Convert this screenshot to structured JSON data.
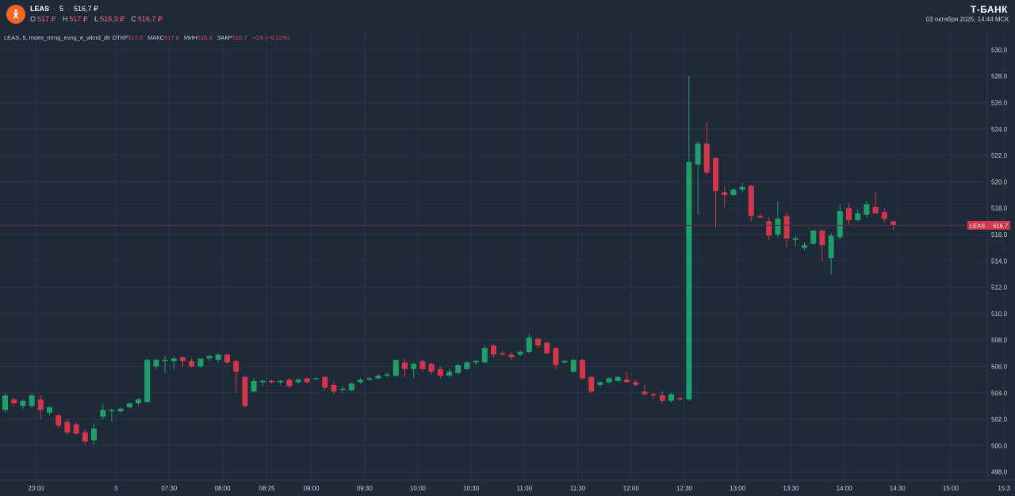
{
  "header": {
    "symbol": "LEAS",
    "interval": "5",
    "price": "516,7 ₽",
    "ohlc": {
      "o_label": "O",
      "o_value": "517 ₽",
      "h_label": "H",
      "h_value": "517 ₽",
      "l_label": "L",
      "l_value": "516,3 ₽",
      "c_label": "C",
      "c_value": "516,7 ₽"
    },
    "brand": "Т-БАНК",
    "datetime": "03 октября 2025, 14:44 МСК"
  },
  "legend": {
    "title": "LEAS, 5, moex_mrng_evng_e_wknd_dlr",
    "open_label": "ОТКР",
    "open_value": "517.0",
    "high_label": "МАКС",
    "high_value": "517.0",
    "low_label": "МИН",
    "low_value": "516.3",
    "close_label": "ЗАКР",
    "close_value": "516.7",
    "change": "−0.6 (−0.12%)"
  },
  "colors": {
    "background": "#1e2a38",
    "up": "#1f9e6a",
    "down": "#d1364a",
    "grid": "#26344a",
    "axis_text": "#c5ccd6",
    "brand_logo": "#f26522"
  },
  "chart_data": {
    "type": "candlestick",
    "y_axis": {
      "range": [
        497.5,
        531
      ],
      "ticks": [
        498,
        500,
        502,
        504,
        506,
        508,
        510,
        512,
        514,
        516,
        518,
        520,
        522,
        524,
        526,
        528,
        530
      ],
      "tick_labels": [
        "498.0",
        "500.0",
        "502.0",
        "504.0",
        "506.0",
        "508.0",
        "510.0",
        "512.0",
        "514.0",
        "516.0",
        "518.0",
        "520.0",
        "522.0",
        "524.0",
        "526.0",
        "528.0",
        "530.0"
      ]
    },
    "x_axis": {
      "tick_labels": [
        "23:00",
        "3",
        "07:30",
        "08:00",
        "08:25",
        "09:00",
        "09:30",
        "10:00",
        "10:30",
        "11:00",
        "11:30",
        "12:00",
        "12:30",
        "13:00",
        "13:30",
        "14:00",
        "14:30",
        "15:00",
        "15:3"
      ],
      "tick_bar_index": [
        2,
        11,
        17,
        23,
        28,
        33,
        39,
        45,
        51,
        57,
        63,
        69,
        75,
        81,
        87,
        93,
        99,
        105,
        111
      ]
    },
    "last_price": {
      "label": "LEAS",
      "value": "516.7",
      "numeric": 516.7
    },
    "candles": [
      {
        "o": 502.7,
        "h": 504.0,
        "l": 502.5,
        "c": 503.8
      },
      {
        "o": 503.5,
        "h": 503.7,
        "l": 503.0,
        "c": 503.2
      },
      {
        "o": 503.0,
        "h": 503.5,
        "l": 502.8,
        "c": 503.4
      },
      {
        "o": 503.0,
        "h": 504.0,
        "l": 502.8,
        "c": 503.8
      },
      {
        "o": 503.5,
        "h": 503.8,
        "l": 502.0,
        "c": 502.7
      },
      {
        "o": 502.5,
        "h": 503.0,
        "l": 502.3,
        "c": 502.9
      },
      {
        "o": 502.3,
        "h": 502.5,
        "l": 501.3,
        "c": 501.5
      },
      {
        "o": 501.8,
        "h": 502.0,
        "l": 500.8,
        "c": 501.0
      },
      {
        "o": 501.6,
        "h": 501.8,
        "l": 500.8,
        "c": 500.9
      },
      {
        "o": 501.0,
        "h": 501.2,
        "l": 500.0,
        "c": 500.3
      },
      {
        "o": 500.4,
        "h": 501.7,
        "l": 500.1,
        "c": 501.3
      },
      {
        "o": 502.2,
        "h": 503.1,
        "l": 502.0,
        "c": 502.7
      },
      {
        "o": 502.6,
        "h": 502.8,
        "l": 501.8,
        "c": 502.7
      },
      {
        "o": 502.6,
        "h": 502.9,
        "l": 502.5,
        "c": 502.8
      },
      {
        "o": 502.9,
        "h": 503.2,
        "l": 502.8,
        "c": 503.2
      },
      {
        "o": 503.2,
        "h": 503.6,
        "l": 503.0,
        "c": 503.5
      },
      {
        "o": 503.3,
        "h": 506.6,
        "l": 503.3,
        "c": 506.5
      },
      {
        "o": 506.0,
        "h": 506.6,
        "l": 505.8,
        "c": 506.5
      },
      {
        "o": 506.4,
        "h": 506.8,
        "l": 505.5,
        "c": 506.5
      },
      {
        "o": 506.4,
        "h": 506.8,
        "l": 505.8,
        "c": 506.6
      },
      {
        "o": 506.7,
        "h": 506.8,
        "l": 506.0,
        "c": 506.4
      },
      {
        "o": 506.4,
        "h": 506.6,
        "l": 505.9,
        "c": 506.0
      },
      {
        "o": 506.0,
        "h": 506.6,
        "l": 505.9,
        "c": 506.6
      },
      {
        "o": 506.6,
        "h": 506.9,
        "l": 506.4,
        "c": 506.8
      },
      {
        "o": 506.5,
        "h": 507.0,
        "l": 506.3,
        "c": 506.9
      },
      {
        "o": 506.9,
        "h": 507.0,
        "l": 506.2,
        "c": 506.3
      },
      {
        "o": 506.4,
        "h": 506.5,
        "l": 504.0,
        "c": 505.6
      },
      {
        "o": 505.2,
        "h": 505.3,
        "l": 502.9,
        "c": 503.0
      },
      {
        "o": 504.1,
        "h": 505.1,
        "l": 504.0,
        "c": 504.9
      },
      {
        "o": 504.8,
        "h": 505.0,
        "l": 504.5,
        "c": 504.9
      },
      {
        "o": 504.9,
        "h": 505.0,
        "l": 504.7,
        "c": 504.8
      },
      {
        "o": 504.8,
        "h": 505.0,
        "l": 504.6,
        "c": 504.9
      },
      {
        "o": 505.0,
        "h": 505.1,
        "l": 504.4,
        "c": 504.5
      },
      {
        "o": 504.8,
        "h": 505.1,
        "l": 504.7,
        "c": 505.0
      },
      {
        "o": 505.1,
        "h": 505.2,
        "l": 504.7,
        "c": 504.8
      },
      {
        "o": 505.1,
        "h": 505.2,
        "l": 505.0,
        "c": 505.1
      },
      {
        "o": 505.2,
        "h": 505.3,
        "l": 504.2,
        "c": 504.4
      },
      {
        "o": 504.6,
        "h": 504.8,
        "l": 503.9,
        "c": 504.1
      },
      {
        "o": 504.3,
        "h": 504.5,
        "l": 504.0,
        "c": 504.3
      },
      {
        "o": 504.2,
        "h": 504.8,
        "l": 504.1,
        "c": 504.7
      },
      {
        "o": 504.8,
        "h": 505.1,
        "l": 504.7,
        "c": 505.0
      },
      {
        "o": 505.0,
        "h": 505.2,
        "l": 504.9,
        "c": 505.1
      },
      {
        "o": 505.1,
        "h": 505.4,
        "l": 505.0,
        "c": 505.3
      },
      {
        "o": 505.3,
        "h": 505.5,
        "l": 505.2,
        "c": 505.4
      },
      {
        "o": 505.3,
        "h": 506.5,
        "l": 505.2,
        "c": 506.5
      },
      {
        "o": 506.3,
        "h": 506.6,
        "l": 505.2,
        "c": 505.8
      },
      {
        "o": 505.8,
        "h": 506.3,
        "l": 505.1,
        "c": 506.2
      },
      {
        "o": 506.4,
        "h": 506.5,
        "l": 505.6,
        "c": 505.8
      },
      {
        "o": 506.2,
        "h": 506.3,
        "l": 505.4,
        "c": 505.6
      },
      {
        "o": 505.8,
        "h": 506.0,
        "l": 505.1,
        "c": 505.3
      },
      {
        "o": 505.3,
        "h": 505.8,
        "l": 505.2,
        "c": 505.6
      },
      {
        "o": 505.5,
        "h": 506.2,
        "l": 505.4,
        "c": 506.1
      },
      {
        "o": 505.8,
        "h": 506.4,
        "l": 505.7,
        "c": 506.3
      },
      {
        "o": 506.3,
        "h": 506.5,
        "l": 506.1,
        "c": 506.4
      },
      {
        "o": 506.3,
        "h": 507.6,
        "l": 506.2,
        "c": 507.4
      },
      {
        "o": 507.6,
        "h": 507.7,
        "l": 506.7,
        "c": 506.9
      },
      {
        "o": 507.0,
        "h": 507.2,
        "l": 506.8,
        "c": 506.9
      },
      {
        "o": 506.9,
        "h": 507.1,
        "l": 506.5,
        "c": 506.7
      },
      {
        "o": 506.9,
        "h": 507.2,
        "l": 506.8,
        "c": 507.1
      },
      {
        "o": 507.1,
        "h": 508.5,
        "l": 507.0,
        "c": 508.2
      },
      {
        "o": 508.1,
        "h": 508.2,
        "l": 507.4,
        "c": 507.6
      },
      {
        "o": 507.8,
        "h": 507.9,
        "l": 506.9,
        "c": 507.0
      },
      {
        "o": 507.4,
        "h": 507.5,
        "l": 505.8,
        "c": 506.1
      },
      {
        "o": 506.3,
        "h": 506.5,
        "l": 506.2,
        "c": 506.4
      },
      {
        "o": 505.6,
        "h": 506.6,
        "l": 505.5,
        "c": 506.5
      },
      {
        "o": 506.5,
        "h": 506.6,
        "l": 505.0,
        "c": 505.1
      },
      {
        "o": 505.2,
        "h": 505.3,
        "l": 504.0,
        "c": 504.1
      },
      {
        "o": 504.6,
        "h": 504.9,
        "l": 504.4,
        "c": 504.8
      },
      {
        "o": 504.8,
        "h": 505.2,
        "l": 504.7,
        "c": 505.1
      },
      {
        "o": 504.9,
        "h": 505.3,
        "l": 504.8,
        "c": 505.2
      },
      {
        "o": 505.0,
        "h": 505.6,
        "l": 504.8,
        "c": 504.8
      },
      {
        "o": 504.8,
        "h": 505.0,
        "l": 504.5,
        "c": 504.6
      },
      {
        "o": 504.1,
        "h": 504.6,
        "l": 503.8,
        "c": 503.9
      },
      {
        "o": 503.9,
        "h": 504.0,
        "l": 503.5,
        "c": 503.8
      },
      {
        "o": 503.8,
        "h": 504.1,
        "l": 503.2,
        "c": 503.4
      },
      {
        "o": 503.4,
        "h": 504.0,
        "l": 503.3,
        "c": 503.9
      },
      {
        "o": 503.6,
        "h": 503.7,
        "l": 503.4,
        "c": 503.5
      },
      {
        "o": 503.5,
        "h": 528.0,
        "l": 503.4,
        "c": 521.5
      },
      {
        "o": 521.3,
        "h": 523.1,
        "l": 517.5,
        "c": 522.9
      },
      {
        "o": 522.9,
        "h": 524.5,
        "l": 520.5,
        "c": 520.7
      },
      {
        "o": 521.8,
        "h": 521.9,
        "l": 516.5,
        "c": 519.3
      },
      {
        "o": 519.2,
        "h": 519.6,
        "l": 518.1,
        "c": 519.0
      },
      {
        "o": 519.0,
        "h": 519.5,
        "l": 518.9,
        "c": 519.4
      },
      {
        "o": 519.4,
        "h": 519.9,
        "l": 519.2,
        "c": 519.6
      },
      {
        "o": 519.7,
        "h": 519.7,
        "l": 517.0,
        "c": 517.4
      },
      {
        "o": 517.4,
        "h": 517.6,
        "l": 517.2,
        "c": 517.3
      },
      {
        "o": 517.0,
        "h": 517.3,
        "l": 515.6,
        "c": 515.9
      },
      {
        "o": 516.0,
        "h": 518.5,
        "l": 515.8,
        "c": 517.2
      },
      {
        "o": 517.4,
        "h": 517.7,
        "l": 515.0,
        "c": 515.7
      },
      {
        "o": 515.6,
        "h": 515.9,
        "l": 515.1,
        "c": 515.7
      },
      {
        "o": 515.0,
        "h": 515.4,
        "l": 514.8,
        "c": 515.2
      },
      {
        "o": 515.3,
        "h": 516.3,
        "l": 515.2,
        "c": 516.3
      },
      {
        "o": 516.3,
        "h": 516.4,
        "l": 514.0,
        "c": 515.2
      },
      {
        "o": 514.2,
        "h": 516.1,
        "l": 513.0,
        "c": 515.9
      },
      {
        "o": 515.8,
        "h": 518.3,
        "l": 515.6,
        "c": 517.8
      },
      {
        "o": 518.0,
        "h": 518.4,
        "l": 516.7,
        "c": 517.1
      },
      {
        "o": 517.1,
        "h": 517.9,
        "l": 517.0,
        "c": 517.6
      },
      {
        "o": 517.5,
        "h": 518.5,
        "l": 517.3,
        "c": 518.3
      },
      {
        "o": 518.1,
        "h": 519.3,
        "l": 517.6,
        "c": 517.6
      },
      {
        "o": 517.7,
        "h": 518.0,
        "l": 516.9,
        "c": 517.2
      },
      {
        "o": 517.0,
        "h": 517.0,
        "l": 516.3,
        "c": 516.7
      }
    ]
  }
}
